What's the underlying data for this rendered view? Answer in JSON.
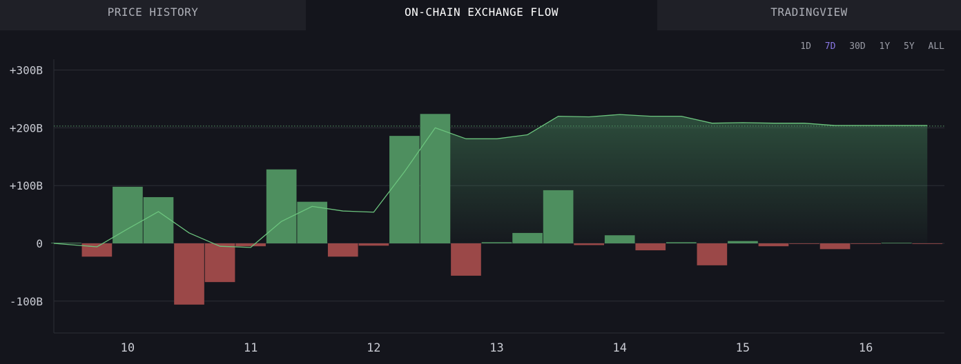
{
  "tabs": [
    {
      "label": "PRICE HISTORY"
    },
    {
      "label": "ON-CHAIN EXCHANGE FLOW"
    },
    {
      "label": "TRADINGVIEW"
    }
  ],
  "active_tab": 1,
  "ranges": [
    "1D",
    "7D",
    "30D",
    "1Y",
    "5Y",
    "ALL"
  ],
  "active_range": "7D",
  "colors": {
    "positive": "#4e8f5f",
    "negative": "#9b4848",
    "line": "#6cc47e",
    "accent": "#8a78e6"
  },
  "chart_data": {
    "type": "bar",
    "ytick_labels": [
      "+300B",
      "+200B",
      "+100B",
      "0",
      "-100B"
    ],
    "yticks": [
      300,
      200,
      100,
      0,
      -100
    ],
    "ylim": [
      -155,
      320
    ],
    "xlim": [
      9.4,
      16.65
    ],
    "xtick_labels": [
      "10",
      "11",
      "12",
      "13",
      "14",
      "15",
      "16"
    ],
    "xticks": [
      10,
      11,
      12,
      13,
      14,
      15,
      16
    ],
    "bar_width": 0.245,
    "reference_line": 203,
    "bars": {
      "x": [
        9.5,
        9.75,
        10.0,
        10.25,
        10.5,
        10.75,
        11.0,
        11.25,
        11.5,
        11.75,
        12.0,
        12.25,
        12.5,
        12.75,
        13.0,
        13.25,
        13.5,
        13.75,
        14.0,
        14.25,
        14.5,
        14.75,
        15.0,
        15.25,
        15.5,
        15.75,
        16.0,
        16.25,
        16.5
      ],
      "values": [
        1,
        -23,
        98,
        80,
        -106,
        -67,
        -5,
        128,
        72,
        -23,
        -4,
        186,
        224,
        -56,
        2,
        18,
        92,
        -3,
        14,
        -12,
        2,
        -38,
        4,
        -5,
        -1,
        -10,
        -1,
        1,
        -1
      ]
    },
    "cumulative": {
      "x": [
        9.4,
        9.75,
        10.0,
        10.25,
        10.5,
        10.75,
        11.0,
        11.25,
        11.5,
        11.75,
        12.0,
        12.25,
        12.5,
        12.75,
        13.0,
        13.25,
        13.5,
        13.75,
        14.0,
        14.25,
        14.5,
        14.75,
        15.0,
        15.25,
        15.5,
        15.75,
        16.0,
        16.25,
        16.5
      ],
      "values": [
        0,
        -6,
        25,
        55,
        18,
        -5,
        -7,
        38,
        64,
        56,
        54,
        124,
        200,
        181,
        181,
        188,
        220,
        219,
        223,
        220,
        220,
        208,
        209,
        208,
        208,
        204,
        204,
        204,
        204
      ]
    }
  }
}
